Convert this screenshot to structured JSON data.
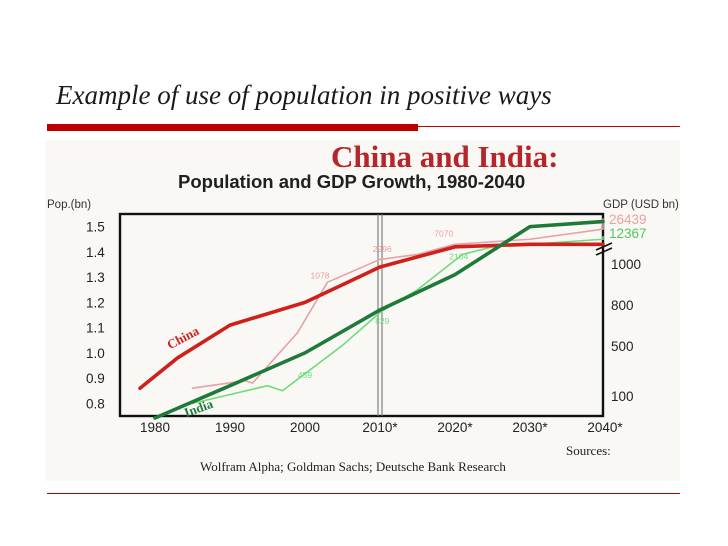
{
  "slide": {
    "title": "Example of use of population in positive ways"
  },
  "chart_data": {
    "type": "line",
    "title": "China and India:",
    "subtitle": "Population and GDP Growth, 1980-2040",
    "left_axis_label": "Pop.(bn)",
    "right_axis_label": "GDP (USD bn)",
    "x": [
      1980,
      1990,
      2000,
      2010,
      2020,
      2030,
      2040
    ],
    "x_tick_labels": [
      "1980",
      "1990",
      "2000",
      "2010*",
      "2020*",
      "2030*",
      "2040*"
    ],
    "y_left_ticks": [
      "1.5",
      "1.4",
      "1.3",
      "1.2",
      "1.1",
      "1.0",
      "0.9",
      "0.8"
    ],
    "y_left_lim": [
      0.75,
      1.55
    ],
    "y_right_ticks": [
      "1000",
      "800",
      "500",
      "100"
    ],
    "y_right_top_values": [
      "26439",
      "12367"
    ],
    "marked_year": "2010*",
    "series": [
      {
        "name": "China",
        "measure": "population",
        "color": "#d0201c",
        "points": [
          [
            1978,
            0.86
          ],
          [
            1983,
            0.98
          ],
          [
            1990,
            1.11
          ],
          [
            2000,
            1.2
          ],
          [
            2005,
            1.27
          ],
          [
            2010,
            1.34
          ],
          [
            2015,
            1.38
          ],
          [
            2020,
            1.42
          ],
          [
            2030,
            1.43
          ],
          [
            2041,
            1.43
          ]
        ]
      },
      {
        "name": "India",
        "measure": "population",
        "color": "#1f7a3a",
        "points": [
          [
            1980,
            0.7
          ],
          [
            1990,
            0.87
          ],
          [
            2000,
            1.0
          ],
          [
            2010,
            1.17
          ],
          [
            2020,
            1.31
          ],
          [
            2030,
            1.5
          ],
          [
            2040,
            1.52
          ]
        ]
      },
      {
        "name": "China GDP",
        "measure": "gdp",
        "color": "#e8a1a3",
        "points": [
          [
            1985,
            0.86
          ],
          [
            1992,
            0.89
          ],
          [
            1993,
            0.88
          ],
          [
            1999,
            1.08
          ],
          [
            2003,
            1.28
          ],
          [
            2010,
            1.37
          ],
          [
            2015,
            1.39
          ],
          [
            2020,
            1.43
          ],
          [
            2030,
            1.45
          ],
          [
            2040,
            1.49
          ],
          [
            2041,
            1.53
          ]
        ]
      },
      {
        "name": "India GDP",
        "measure": "gdp",
        "color": "#6fdc7a",
        "points": [
          [
            1985,
            0.8
          ],
          [
            1995,
            0.87
          ],
          [
            1997,
            0.85
          ],
          [
            2005,
            1.03
          ],
          [
            2010,
            1.16
          ],
          [
            2015,
            1.25
          ],
          [
            2021,
            1.39
          ],
          [
            2025,
            1.42
          ],
          [
            2040,
            1.45
          ],
          [
            2041,
            1.46
          ]
        ]
      }
    ],
    "data_labels": [
      {
        "text": "1078",
        "x": 2002,
        "y": 1.295,
        "color": "#e8a1a3"
      },
      {
        "text": "2996",
        "x": 2010.3,
        "y": 1.4,
        "color": "#e8a1a3"
      },
      {
        "text": "7070",
        "x": 2018.5,
        "y": 1.46,
        "color": "#e8a1a3"
      },
      {
        "text": "459",
        "x": 2000,
        "y": 0.9,
        "color": "#6fdc7a"
      },
      {
        "text": "829",
        "x": 2010.3,
        "y": 1.115,
        "color": "#6fdc7a"
      },
      {
        "text": "2104",
        "x": 2020.5,
        "y": 1.37,
        "color": "#6fdc7a"
      }
    ],
    "series_labels": [
      {
        "text": "China",
        "x": 1984,
        "y": 1.045,
        "rotate": -28,
        "color": "#d0201c"
      },
      {
        "text": "India",
        "x": 1986,
        "y": 0.765,
        "rotate": -20,
        "color": "#1f7a3a"
      }
    ],
    "sources_heading": "Sources:",
    "sources_text": "Wolfram Alpha; Goldman Sachs; Deutsche Bank Research"
  }
}
